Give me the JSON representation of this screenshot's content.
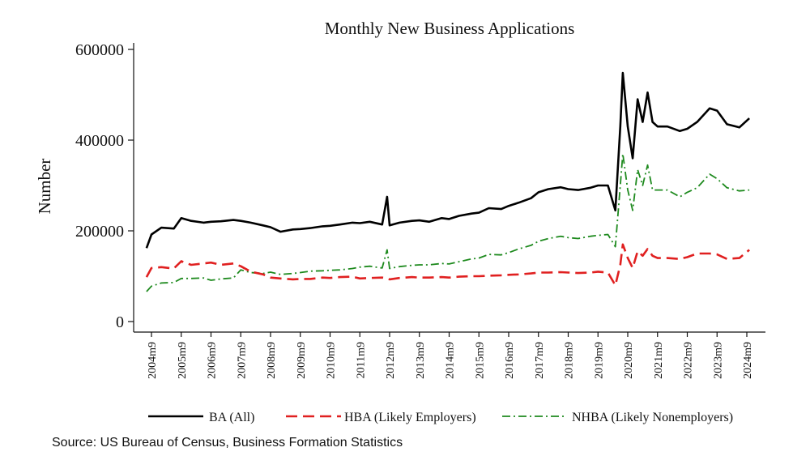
{
  "chart_data": {
    "type": "line",
    "title": "Monthly New Business Applications",
    "ylabel": "Number",
    "xlabel": "",
    "ylim": [
      0,
      620000
    ],
    "yticks": [
      0,
      200000,
      400000,
      600000
    ],
    "ytick_labels": [
      "0",
      "200000",
      "400000",
      "600000"
    ],
    "xticks": [
      "2004m9",
      "2005m9",
      "2006m9",
      "2007m9",
      "2008m9",
      "2009m9",
      "2010m9",
      "2011m9",
      "2012m9",
      "2013m9",
      "2014m9",
      "2015m9",
      "2016m9",
      "2017m9",
      "2018m9",
      "2019m9",
      "2020m9",
      "2021m9",
      "2022m9",
      "2023m9",
      "2024m9"
    ],
    "grid": false,
    "legend_position": "bottom",
    "x": [
      "2004m7",
      "2004m9",
      "2005m1",
      "2005m6",
      "2005m9",
      "2006m1",
      "2006m6",
      "2006m9",
      "2007m1",
      "2007m6",
      "2007m9",
      "2008m1",
      "2008m6",
      "2008m9",
      "2009m1",
      "2009m6",
      "2009m9",
      "2010m1",
      "2010m6",
      "2010m9",
      "2011m1",
      "2011m6",
      "2011m9",
      "2012m1",
      "2012m6",
      "2012m8",
      "2012m9",
      "2013m1",
      "2013m6",
      "2013m9",
      "2014m1",
      "2014m6",
      "2014m9",
      "2015m1",
      "2015m6",
      "2015m9",
      "2016m1",
      "2016m6",
      "2016m9",
      "2017m1",
      "2017m6",
      "2017m9",
      "2018m1",
      "2018m6",
      "2018m9",
      "2019m1",
      "2019m6",
      "2019m9",
      "2020m1",
      "2020m4",
      "2020m6",
      "2020m7",
      "2020m9",
      "2020m11",
      "2021m1",
      "2021m3",
      "2021m5",
      "2021m7",
      "2021m9",
      "2022m1",
      "2022m6",
      "2022m9",
      "2023m1",
      "2023m6",
      "2023m9",
      "2024m1",
      "2024m6",
      "2024m10"
    ],
    "series": [
      {
        "name": "BA (All)",
        "color": "#000000",
        "dash": "solid",
        "values": [
          162000,
          192000,
          207000,
          205000,
          228000,
          222000,
          218000,
          220000,
          221000,
          224000,
          222000,
          218000,
          212000,
          208000,
          198000,
          203000,
          204000,
          206000,
          210000,
          211000,
          214000,
          218000,
          217000,
          220000,
          214000,
          275000,
          212000,
          218000,
          222000,
          223000,
          220000,
          228000,
          226000,
          233000,
          238000,
          240000,
          250000,
          248000,
          255000,
          262000,
          272000,
          285000,
          292000,
          296000,
          292000,
          290000,
          295000,
          300000,
          300000,
          245000,
          430000,
          548000,
          430000,
          360000,
          490000,
          440000,
          505000,
          440000,
          430000,
          430000,
          420000,
          425000,
          440000,
          470000,
          465000,
          435000,
          428000,
          448000
        ]
      },
      {
        "name": "HBA (Likely Employers)",
        "color": "#e02020",
        "dash": "dashed",
        "values": [
          98000,
          118000,
          120000,
          117000,
          133000,
          125000,
          128000,
          130000,
          125000,
          128000,
          122000,
          110000,
          104000,
          97000,
          95000,
          93000,
          94000,
          94000,
          97000,
          96000,
          98000,
          99000,
          95000,
          96000,
          97000,
          95000,
          93000,
          96000,
          98000,
          97000,
          97000,
          98000,
          97000,
          99000,
          100000,
          100000,
          101000,
          102000,
          103000,
          104000,
          106000,
          108000,
          108000,
          109000,
          108000,
          107000,
          108000,
          110000,
          108000,
          80000,
          125000,
          170000,
          140000,
          118000,
          155000,
          145000,
          160000,
          145000,
          140000,
          140000,
          138000,
          142000,
          150000,
          150000,
          148000,
          138000,
          140000,
          158000
        ]
      },
      {
        "name": "NHBA (Likely Nonemployers)",
        "color": "#1e8a1e",
        "dash": "dashdot",
        "values": [
          66000,
          78000,
          85000,
          86000,
          95000,
          95000,
          96000,
          91000,
          94000,
          96000,
          114000,
          108000,
          106000,
          109000,
          104000,
          106000,
          108000,
          111000,
          112000,
          113000,
          114000,
          117000,
          120000,
          122000,
          118000,
          158000,
          117000,
          121000,
          124000,
          125000,
          125000,
          128000,
          127000,
          132000,
          138000,
          140000,
          148000,
          147000,
          152000,
          160000,
          168000,
          177000,
          183000,
          188000,
          185000,
          183000,
          188000,
          190000,
          192000,
          165000,
          300000,
          370000,
          290000,
          245000,
          335000,
          300000,
          345000,
          290000,
          290000,
          290000,
          275000,
          285000,
          295000,
          325000,
          315000,
          295000,
          288000,
          290000
        ]
      }
    ]
  },
  "source_note": "Source:  US Bureau of Census, Business Formation Statistics"
}
